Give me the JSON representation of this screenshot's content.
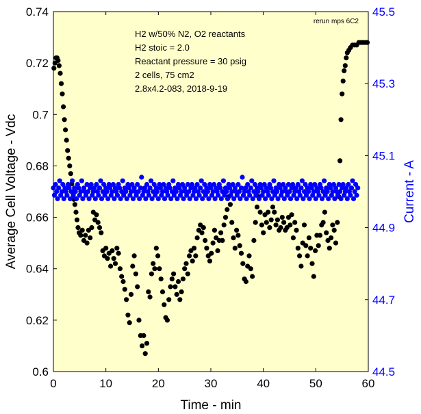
{
  "chart_data": {
    "type": "scatter",
    "xlabel": "Time - min",
    "ylabel_left": "Average Cell Voltage - Vdc",
    "ylabel_right": "Current - A",
    "xlim": [
      0,
      60
    ],
    "ylim_left": [
      0.6,
      0.74
    ],
    "ylim_right": [
      44.5,
      45.5
    ],
    "x_ticks": [
      "0",
      "10",
      "20",
      "30",
      "40",
      "50",
      "60"
    ],
    "y_left_ticks": [
      "0.6",
      "0.62",
      "0.64",
      "0.66",
      "0.68",
      "0.7",
      "0.72",
      "0.74"
    ],
    "y_right_ticks": [
      "44.5",
      "44.7",
      "44.9",
      "45.1",
      "45.3",
      "45.5"
    ],
    "grid": false,
    "background": "#ffffcc",
    "annotation_lines": [
      "H2 w/50% N2, O2 reactants",
      "H2 stoic = 2.0",
      "Reactant pressure = 30 psig",
      "2 cells, 75 cm2",
      "2.8x4.2-083,  2018-9-19"
    ],
    "corner_note": "rerun mps 6C2",
    "series": [
      {
        "axis": "left",
        "color": "#000000",
        "points": [
          [
            0.1,
            0.718
          ],
          [
            0.3,
            0.72
          ],
          [
            0.5,
            0.722
          ],
          [
            0.7,
            0.722
          ],
          [
            0.9,
            0.721
          ],
          [
            1.1,
            0.719
          ],
          [
            1.3,
            0.716
          ],
          [
            1.5,
            0.712
          ],
          [
            1.7,
            0.708
          ],
          [
            1.9,
            0.703
          ],
          [
            2.1,
            0.698
          ],
          [
            2.3,
            0.694
          ],
          [
            2.5,
            0.69
          ],
          [
            2.7,
            0.686
          ],
          [
            2.9,
            0.683
          ],
          [
            3.1,
            0.68
          ],
          [
            3.3,
            0.677
          ],
          [
            3.5,
            0.673
          ],
          [
            3.7,
            0.67
          ],
          [
            3.9,
            0.667
          ],
          [
            4.1,
            0.665
          ],
          [
            4.3,
            0.662
          ],
          [
            4.5,
            0.659
          ],
          [
            4.7,
            0.656
          ],
          [
            4.9,
            0.654
          ],
          [
            5.2,
            0.653
          ],
          [
            5.5,
            0.655
          ],
          [
            5.8,
            0.651
          ],
          [
            6.1,
            0.653
          ],
          [
            6.4,
            0.65
          ],
          [
            6.7,
            0.655
          ],
          [
            7.0,
            0.652
          ],
          [
            7.3,
            0.656
          ],
          [
            7.6,
            0.662
          ],
          [
            7.9,
            0.659
          ],
          [
            8.2,
            0.661
          ],
          [
            8.5,
            0.658
          ],
          [
            8.8,
            0.656
          ],
          [
            9.1,
            0.654
          ],
          [
            9.4,
            0.647
          ],
          [
            9.7,
            0.645
          ],
          [
            10.0,
            0.648
          ],
          [
            10.3,
            0.644
          ],
          [
            10.6,
            0.646
          ],
          [
            10.9,
            0.641
          ],
          [
            11.2,
            0.647
          ],
          [
            11.5,
            0.644
          ],
          [
            11.8,
            0.642
          ],
          [
            12.1,
            0.648
          ],
          [
            12.4,
            0.646
          ],
          [
            12.7,
            0.64
          ],
          [
            13.0,
            0.637
          ],
          [
            13.3,
            0.635
          ],
          [
            13.6,
            0.632
          ],
          [
            13.9,
            0.628
          ],
          [
            14.2,
            0.622
          ],
          [
            14.5,
            0.619
          ],
          [
            14.8,
            0.63
          ],
          [
            15.1,
            0.641
          ],
          [
            15.4,
            0.645
          ],
          [
            15.7,
            0.638
          ],
          [
            16.0,
            0.633
          ],
          [
            16.3,
            0.62
          ],
          [
            16.6,
            0.614
          ],
          [
            16.9,
            0.61
          ],
          [
            17.2,
            0.614
          ],
          [
            17.5,
            0.607
          ],
          [
            17.8,
            0.611
          ],
          [
            18.1,
            0.631
          ],
          [
            18.4,
            0.629
          ],
          [
            18.7,
            0.638
          ],
          [
            19.0,
            0.642
          ],
          [
            19.3,
            0.64
          ],
          [
            19.6,
            0.648
          ],
          [
            19.9,
            0.645
          ],
          [
            20.2,
            0.64
          ],
          [
            20.5,
            0.636
          ],
          [
            20.8,
            0.631
          ],
          [
            21.1,
            0.626
          ],
          [
            21.4,
            0.621
          ],
          [
            21.7,
            0.62
          ],
          [
            22.0,
            0.628
          ],
          [
            22.3,
            0.633
          ],
          [
            22.6,
            0.636
          ],
          [
            22.9,
            0.638
          ],
          [
            23.2,
            0.633
          ],
          [
            23.5,
            0.63
          ],
          [
            23.8,
            0.635
          ],
          [
            24.1,
            0.628
          ],
          [
            24.4,
            0.631
          ],
          [
            24.7,
            0.636
          ],
          [
            25.0,
            0.64
          ],
          [
            25.3,
            0.642
          ],
          [
            25.6,
            0.638
          ],
          [
            25.9,
            0.645
          ],
          [
            26.2,
            0.647
          ],
          [
            26.5,
            0.643
          ],
          [
            26.8,
            0.648
          ],
          [
            27.1,
            0.645
          ],
          [
            27.4,
            0.652
          ],
          [
            27.7,
            0.655
          ],
          [
            28.0,
            0.657
          ],
          [
            28.3,
            0.654
          ],
          [
            28.6,
            0.656
          ],
          [
            28.9,
            0.651
          ],
          [
            29.2,
            0.648
          ],
          [
            29.5,
            0.645
          ],
          [
            29.8,
            0.643
          ],
          [
            30.1,
            0.646
          ],
          [
            30.4,
            0.65
          ],
          [
            30.7,
            0.655
          ],
          [
            31.0,
            0.652
          ],
          [
            31.3,
            0.647
          ],
          [
            31.6,
            0.651
          ],
          [
            31.9,
            0.654
          ],
          [
            32.2,
            0.651
          ],
          [
            32.5,
            0.657
          ],
          [
            32.8,
            0.66
          ],
          [
            33.1,
            0.663
          ],
          [
            33.4,
            0.668
          ],
          [
            33.7,
            0.665
          ],
          [
            34.0,
            0.658
          ],
          [
            34.3,
            0.652
          ],
          [
            34.6,
            0.648
          ],
          [
            34.9,
            0.655
          ],
          [
            35.2,
            0.653
          ],
          [
            35.5,
            0.649
          ],
          [
            35.8,
            0.646
          ],
          [
            36.1,
            0.642
          ],
          [
            36.4,
            0.636
          ],
          [
            36.7,
            0.635
          ],
          [
            37.0,
            0.641
          ],
          [
            37.3,
            0.645
          ],
          [
            37.6,
            0.64
          ],
          [
            37.9,
            0.637
          ],
          [
            38.2,
            0.651
          ],
          [
            38.5,
            0.658
          ],
          [
            38.8,
            0.664
          ],
          [
            39.1,
            0.668
          ],
          [
            39.4,
            0.662
          ],
          [
            39.7,
            0.657
          ],
          [
            40.0,
            0.654
          ],
          [
            40.3,
            0.661
          ],
          [
            40.6,
            0.658
          ],
          [
            40.9,
            0.662
          ],
          [
            41.2,
            0.656
          ],
          [
            41.5,
            0.659
          ],
          [
            41.8,
            0.664
          ],
          [
            42.1,
            0.662
          ],
          [
            42.4,
            0.657
          ],
          [
            42.7,
            0.659
          ],
          [
            43.0,
            0.655
          ],
          [
            43.3,
            0.656
          ],
          [
            43.6,
            0.66
          ],
          [
            43.9,
            0.658
          ],
          [
            44.2,
            0.655
          ],
          [
            44.5,
            0.656
          ],
          [
            44.8,
            0.66
          ],
          [
            45.1,
            0.657
          ],
          [
            45.4,
            0.661
          ],
          [
            45.7,
            0.652
          ],
          [
            46.0,
            0.658
          ],
          [
            46.3,
            0.655
          ],
          [
            46.6,
            0.648
          ],
          [
            46.9,
            0.645
          ],
          [
            47.2,
            0.641
          ],
          [
            47.5,
            0.65
          ],
          [
            47.8,
            0.657
          ],
          [
            48.1,
            0.649
          ],
          [
            48.4,
            0.645
          ],
          [
            48.7,
            0.652
          ],
          [
            49.0,
            0.648
          ],
          [
            49.3,
            0.642
          ],
          [
            49.6,
            0.637
          ],
          [
            49.9,
            0.647
          ],
          [
            50.2,
            0.653
          ],
          [
            50.5,
            0.649
          ],
          [
            50.8,
            0.653
          ],
          [
            51.1,
            0.657
          ],
          [
            51.4,
            0.658
          ],
          [
            51.7,
            0.662
          ],
          [
            52.0,
            0.654
          ],
          [
            52.3,
            0.651
          ],
          [
            52.6,
            0.648
          ],
          [
            52.9,
            0.652
          ],
          [
            53.2,
            0.657
          ],
          [
            53.5,
            0.655
          ],
          [
            53.8,
            0.65
          ],
          [
            54.1,
            0.658
          ],
          [
            54.4,
            0.668
          ],
          [
            54.6,
            0.682
          ],
          [
            54.8,
            0.698
          ],
          [
            55.0,
            0.708
          ],
          [
            55.2,
            0.713
          ],
          [
            55.4,
            0.717
          ],
          [
            55.6,
            0.719
          ],
          [
            55.8,
            0.722
          ],
          [
            56.0,
            0.724
          ],
          [
            56.3,
            0.725
          ],
          [
            56.6,
            0.726
          ],
          [
            57.0,
            0.727
          ],
          [
            57.4,
            0.727
          ],
          [
            57.8,
            0.727
          ],
          [
            58.2,
            0.728
          ],
          [
            58.6,
            0.728
          ],
          [
            59.0,
            0.728
          ],
          [
            59.4,
            0.728
          ],
          [
            59.8,
            0.728
          ]
        ]
      },
      {
        "axis": "right",
        "color": "#0000ff",
        "x_start": 0.0,
        "x_step": 0.2,
        "values": [
          45.01,
          44.99,
          45.02,
          45.0,
          44.98,
          45.01,
          45.03,
          44.99,
          45.0,
          45.02,
          44.98,
          45.01,
          45.0,
          44.99,
          45.02,
          45.01,
          44.98,
          45.0,
          45.03,
          44.99,
          45.01,
          45.0,
          44.98,
          45.02,
          45.01,
          44.99,
          45.0,
          45.03,
          44.98,
          45.01,
          45.0,
          44.99,
          45.02,
          45.0,
          44.98,
          45.01,
          45.02,
          44.99,
          45.0,
          45.01,
          44.98,
          45.02,
          45.0,
          44.99,
          45.01,
          45.03,
          44.98,
          45.0,
          45.02,
          44.99,
          45.01,
          45.0,
          44.98,
          45.02,
          45.01,
          44.99,
          45.0,
          45.02,
          44.98,
          45.01,
          45.0,
          44.99,
          45.02,
          45.01,
          44.98,
          45.0,
          45.03,
          44.99,
          45.01,
          45.0,
          44.98,
          45.02,
          45.01,
          44.99,
          45.0,
          45.02,
          44.98,
          45.01,
          45.0,
          44.99,
          45.02,
          45.0,
          44.98,
          45.01,
          45.04,
          44.99,
          45.0,
          45.01,
          44.98,
          45.02,
          45.0,
          44.99,
          45.01,
          45.03,
          44.98,
          45.0,
          45.02,
          44.99,
          45.01,
          45.0,
          44.98,
          45.02,
          45.01,
          44.99,
          45.0,
          45.02,
          44.98,
          45.01,
          45.0,
          44.99,
          45.02,
          45.01,
          44.98,
          45.0,
          45.03,
          44.99,
          45.01,
          45.0,
          44.98,
          45.02,
          45.01,
          44.99,
          45.0,
          45.02,
          44.98,
          45.01,
          45.0,
          44.99,
          45.02,
          45.0,
          44.98,
          45.01,
          45.02,
          44.99,
          45.0,
          45.01,
          44.98,
          45.02,
          45.0,
          44.99,
          45.01,
          45.03,
          44.98,
          45.0,
          45.02,
          44.99,
          45.01,
          45.0,
          44.98,
          45.02,
          45.01,
          44.99,
          45.0,
          45.02,
          44.98,
          45.01,
          45.0,
          44.99,
          45.02,
          45.01,
          44.98,
          45.0,
          45.03,
          44.99,
          45.01,
          45.0,
          44.98,
          45.02,
          45.01,
          44.99,
          45.0,
          45.02,
          44.98,
          45.01,
          45.0,
          44.99,
          45.02,
          45.0,
          44.98,
          45.01,
          45.04,
          44.99,
          45.0,
          45.01,
          44.98,
          45.02,
          45.0,
          44.99,
          45.01,
          45.03,
          44.98,
          45.0,
          45.02,
          44.99,
          45.01,
          45.0,
          44.98,
          45.02,
          45.01,
          44.99,
          45.0,
          45.02,
          44.98,
          45.01,
          45.0,
          44.99,
          45.02,
          45.01,
          44.98,
          45.0,
          45.03,
          44.99,
          45.01,
          45.0,
          44.98,
          45.02,
          45.01,
          44.99,
          45.0,
          45.02,
          44.98,
          45.01,
          45.0,
          44.99,
          45.02,
          45.0,
          44.98,
          45.01,
          45.02,
          44.99,
          45.0,
          45.01,
          44.98,
          45.02,
          45.0,
          44.99,
          45.01,
          45.03,
          44.98,
          45.0,
          45.02,
          44.99,
          45.01,
          45.0,
          44.98,
          45.02,
          45.01,
          44.99,
          45.0,
          45.02,
          44.98,
          45.01,
          45.0,
          44.99,
          45.02,
          45.01,
          44.98,
          45.0,
          45.03,
          44.99,
          45.01,
          45.0,
          44.98,
          45.02,
          45.01,
          44.99,
          45.0,
          45.02,
          44.98,
          45.01,
          45.0,
          44.99,
          45.02,
          45.0,
          44.98,
          45.01,
          45.02,
          44.99,
          45.0,
          45.01,
          44.98,
          45.02,
          45.0,
          44.99,
          45.01,
          45.03,
          44.98,
          45.0,
          45.02,
          44.99,
          45.01
        ]
      }
    ]
  }
}
